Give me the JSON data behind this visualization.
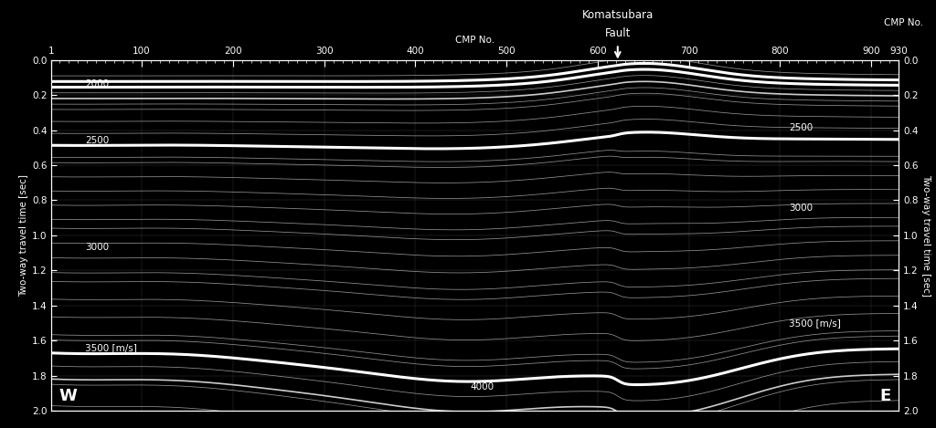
{
  "bg_color": "#000000",
  "text_color": "#ffffff",
  "cmp_min": 1,
  "cmp_max": 930,
  "time_min": 0.0,
  "time_max": 2.0,
  "x_ticks": [
    1,
    100,
    200,
    300,
    400,
    500,
    600,
    700,
    800,
    900,
    930
  ],
  "y_ticks": [
    0.0,
    0.2,
    0.4,
    0.6,
    0.8,
    1.0,
    1.2,
    1.4,
    1.6,
    1.8,
    2.0
  ],
  "fault_cmp": 622,
  "fault_label_line1": "Komatsubara",
  "fault_label_line2": "Fault",
  "ylabel_left": "Two-way travel time [sec]",
  "ylabel_right": "Two-way travel time [sec]",
  "xlabel_top": "CMP No.",
  "label_W": "W",
  "label_E": "E",
  "velocity_labels_left": [
    {
      "text": "2000",
      "cmp": 38,
      "time": 0.135
    },
    {
      "text": "2500",
      "cmp": 38,
      "time": 0.46
    },
    {
      "text": "3000",
      "cmp": 38,
      "time": 1.07
    },
    {
      "text": "3500 [m/s]",
      "cmp": 38,
      "time": 1.64
    }
  ],
  "velocity_labels_right": [
    {
      "text": "2500",
      "cmp": 810,
      "time": 0.385
    },
    {
      "text": "3000",
      "cmp": 810,
      "time": 0.845
    },
    {
      "text": "3500 [m/s]",
      "cmp": 810,
      "time": 1.5
    }
  ],
  "velocity_labels_mid": [
    {
      "text": "4000",
      "cmp": 460,
      "time": 1.865
    }
  ],
  "num_reflectors": 30,
  "thick_line_times": [
    0.135,
    0.46,
    1.07,
    1.64
  ],
  "line_color_thick": "#ffffff",
  "line_color_thin": "#aaaaaa",
  "line_color_thinner": "#666666"
}
